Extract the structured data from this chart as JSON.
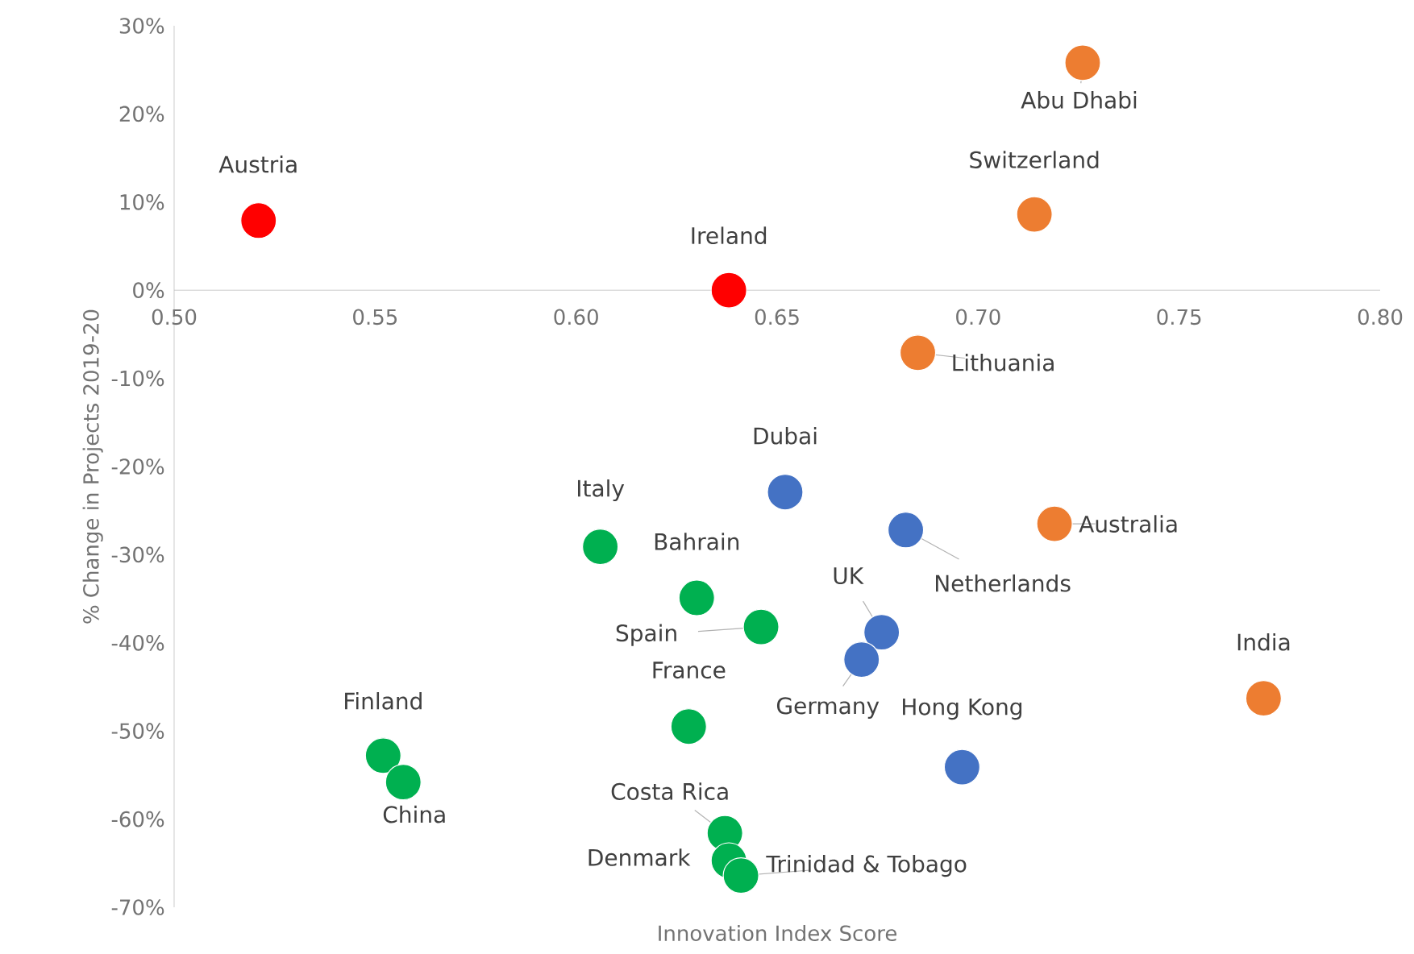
{
  "chart_data": {
    "type": "scatter",
    "xlabel": "Innovation Index Score",
    "ylabel": "% Change in Projects 2019-20",
    "xlim": [
      0.5,
      0.8
    ],
    "xticks": [
      {
        "value": 0.5,
        "label": "0.50"
      },
      {
        "value": 0.55,
        "label": "0.55"
      },
      {
        "value": 0.6,
        "label": "0.60"
      },
      {
        "value": 0.65,
        "label": "0.65"
      },
      {
        "value": 0.7,
        "label": "0.70"
      },
      {
        "value": 0.75,
        "label": "0.75"
      },
      {
        "value": 0.8,
        "label": "0.80"
      }
    ],
    "ylim": [
      -70,
      30
    ],
    "yticks": [
      {
        "value": -70,
        "label": "-70%"
      },
      {
        "value": -60,
        "label": "-60%"
      },
      {
        "value": -50,
        "label": "-50%"
      },
      {
        "value": -40,
        "label": "-40%"
      },
      {
        "value": -30,
        "label": "-30%"
      },
      {
        "value": -20,
        "label": "-20%"
      },
      {
        "value": -10,
        "label": "-10%"
      },
      {
        "value": 0,
        "label": "0%"
      },
      {
        "value": 10,
        "label": "10%"
      },
      {
        "value": 20,
        "label": "20%"
      },
      {
        "value": 30,
        "label": "30%"
      }
    ],
    "grid": false,
    "marker": "circle",
    "series": [
      {
        "color": "#ff0000",
        "x": [
          0.521,
          0.638
        ],
        "values": [
          7.9,
          0
        ]
      },
      {
        "color": "#ed7d31",
        "x": [
          0.726,
          0.714,
          0.685,
          0.719,
          0.771
        ],
        "values": [
          25.8,
          8.6,
          -7.1,
          -26.5,
          -46.3
        ]
      },
      {
        "color": "#4472c4",
        "x": [
          0.652,
          0.682,
          0.676,
          0.671,
          0.696
        ],
        "values": [
          -22.9,
          -27.2,
          -38.8,
          -41.9,
          -54.1
        ]
      },
      {
        "color": "#00b050",
        "x": [
          0.606,
          0.63,
          0.646,
          0.628,
          0.552,
          0.557,
          0.637,
          0.638,
          0.641
        ],
        "values": [
          -29.1,
          -34.9,
          -38.2,
          -49.5,
          -52.8,
          -55.8,
          -61.6,
          -64.7,
          -66.4
        ]
      }
    ],
    "annotations": [
      {
        "text": "Austria",
        "x": 0.521,
        "y": 7.9
      },
      {
        "text": "Ireland",
        "x": 0.638,
        "y": 0
      },
      {
        "text": "Abu Dhabi",
        "x": 0.726,
        "y": 25.8
      },
      {
        "text": "Switzerland",
        "x": 0.714,
        "y": 8.6
      },
      {
        "text": "Lithuania",
        "x": 0.685,
        "y": -7.1
      },
      {
        "text": "Australia",
        "x": 0.719,
        "y": -26.5
      },
      {
        "text": "India",
        "x": 0.771,
        "y": -46.3
      },
      {
        "text": "Dubai",
        "x": 0.652,
        "y": -22.9
      },
      {
        "text": "Netherlands",
        "x": 0.682,
        "y": -27.2
      },
      {
        "text": "UK",
        "x": 0.676,
        "y": -38.8
      },
      {
        "text": "Germany",
        "x": 0.671,
        "y": -41.9
      },
      {
        "text": "Hong Kong",
        "x": 0.696,
        "y": -54.1
      },
      {
        "text": "Italy",
        "x": 0.606,
        "y": -29.1
      },
      {
        "text": "Bahrain",
        "x": 0.63,
        "y": -34.9
      },
      {
        "text": "Spain",
        "x": 0.646,
        "y": -38.2
      },
      {
        "text": "France",
        "x": 0.628,
        "y": -49.5
      },
      {
        "text": "Finland",
        "x": 0.552,
        "y": -52.8
      },
      {
        "text": "China",
        "x": 0.557,
        "y": -55.8
      },
      {
        "text": "Costa Rica",
        "x": 0.637,
        "y": -61.6
      },
      {
        "text": "Denmark",
        "x": 0.638,
        "y": -64.7
      },
      {
        "text": "Trinidad & Tobago",
        "x": 0.641,
        "y": -66.4
      }
    ]
  }
}
